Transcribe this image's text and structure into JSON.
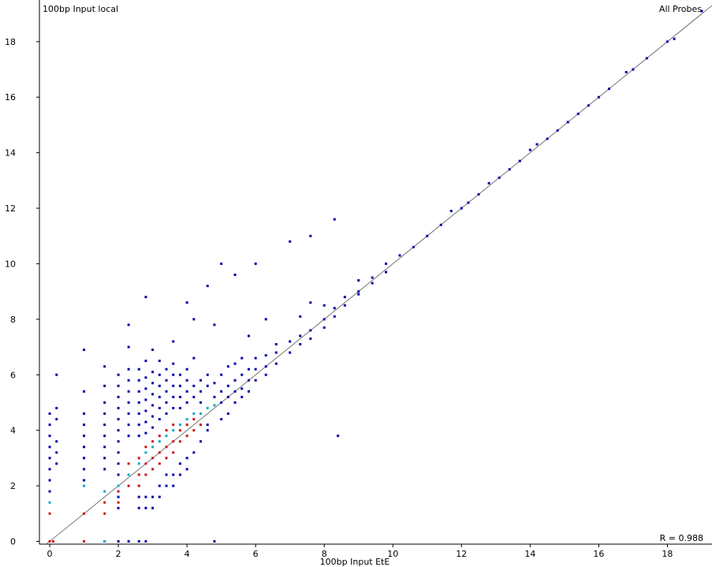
{
  "chart_data": {
    "type": "scatter",
    "title": "All Probes",
    "xlabel": "100bp Input EtE",
    "ylabel": "100bp Input local",
    "annotation": "R = 0.988",
    "xlim": [
      -0.3,
      19.3
    ],
    "ylim": [
      -0.1,
      19.5
    ],
    "xticks": [
      "0",
      "2",
      "4",
      "6",
      "8",
      "10",
      "12",
      "14",
      "16",
      "18"
    ],
    "yticks": [
      "0",
      "2",
      "4",
      "6",
      "8",
      "10",
      "12",
      "14",
      "16",
      "18"
    ],
    "reference_line": "y = x",
    "colors": {
      "axis": "#000000",
      "line": "#555555",
      "low_density": "#0000aa",
      "mid_density": "#00aacc",
      "high_density": "#cc1111"
    },
    "series": [
      {
        "density": "low",
        "points": [
          [
            0,
            4.6
          ],
          [
            0,
            4.2
          ],
          [
            0,
            3.8
          ],
          [
            0,
            3.4
          ],
          [
            0,
            3.0
          ],
          [
            0,
            2.6
          ],
          [
            0,
            2.2
          ],
          [
            0,
            1.8
          ],
          [
            0.2,
            6.0
          ],
          [
            0.2,
            4.8
          ],
          [
            0.2,
            4.4
          ],
          [
            0.2,
            3.6
          ],
          [
            0.2,
            3.2
          ],
          [
            0.2,
            2.8
          ],
          [
            1,
            6.9
          ],
          [
            1,
            5.4
          ],
          [
            1,
            4.6
          ],
          [
            1,
            4.2
          ],
          [
            1,
            3.8
          ],
          [
            1,
            3.4
          ],
          [
            1,
            3.0
          ],
          [
            1,
            2.6
          ],
          [
            1,
            2.2
          ],
          [
            1.6,
            6.3
          ],
          [
            1.6,
            5.6
          ],
          [
            1.6,
            5.0
          ],
          [
            1.6,
            4.6
          ],
          [
            1.6,
            4.2
          ],
          [
            1.6,
            3.8
          ],
          [
            1.6,
            3.4
          ],
          [
            1.6,
            3.0
          ],
          [
            1.6,
            2.6
          ],
          [
            1.6,
            0
          ],
          [
            2,
            6.0
          ],
          [
            2,
            5.6
          ],
          [
            2,
            5.2
          ],
          [
            2,
            4.8
          ],
          [
            2,
            4.4
          ],
          [
            2,
            4.0
          ],
          [
            2,
            3.6
          ],
          [
            2,
            3.2
          ],
          [
            2,
            2.8
          ],
          [
            2,
            2.4
          ],
          [
            2,
            1.6
          ],
          [
            2,
            1.2
          ],
          [
            2,
            0
          ],
          [
            2.3,
            7.8
          ],
          [
            2.3,
            7.0
          ],
          [
            2.3,
            6.2
          ],
          [
            2.3,
            5.8
          ],
          [
            2.3,
            5.4
          ],
          [
            2.3,
            5.0
          ],
          [
            2.3,
            4.6
          ],
          [
            2.3,
            4.2
          ],
          [
            2.3,
            3.8
          ],
          [
            2.3,
            0
          ],
          [
            2.6,
            6.2
          ],
          [
            2.6,
            5.8
          ],
          [
            2.6,
            5.4
          ],
          [
            2.6,
            5.0
          ],
          [
            2.6,
            4.6
          ],
          [
            2.6,
            4.2
          ],
          [
            2.6,
            3.8
          ],
          [
            2.6,
            1.6
          ],
          [
            2.6,
            1.2
          ],
          [
            2.6,
            0
          ],
          [
            2.8,
            8.8
          ],
          [
            2.8,
            6.5
          ],
          [
            2.8,
            5.9
          ],
          [
            2.8,
            5.5
          ],
          [
            2.8,
            5.1
          ],
          [
            2.8,
            4.7
          ],
          [
            2.8,
            4.3
          ],
          [
            2.8,
            3.9
          ],
          [
            2.8,
            1.6
          ],
          [
            2.8,
            1.2
          ],
          [
            2.8,
            0
          ],
          [
            3.0,
            6.9
          ],
          [
            3.0,
            6.1
          ],
          [
            3.0,
            5.7
          ],
          [
            3.0,
            5.3
          ],
          [
            3.0,
            4.9
          ],
          [
            3.0,
            4.5
          ],
          [
            3.0,
            4.1
          ],
          [
            3.0,
            1.6
          ],
          [
            3.0,
            1.2
          ],
          [
            3.2,
            6.5
          ],
          [
            3.2,
            6.0
          ],
          [
            3.2,
            5.6
          ],
          [
            3.2,
            5.2
          ],
          [
            3.2,
            4.8
          ],
          [
            3.2,
            4.4
          ],
          [
            3.2,
            2.0
          ],
          [
            3.2,
            1.6
          ],
          [
            3.4,
            6.2
          ],
          [
            3.4,
            5.8
          ],
          [
            3.4,
            5.4
          ],
          [
            3.4,
            5.0
          ],
          [
            3.4,
            4.6
          ],
          [
            3.4,
            2.4
          ],
          [
            3.4,
            2.0
          ],
          [
            3.6,
            7.2
          ],
          [
            3.6,
            6.4
          ],
          [
            3.6,
            6.0
          ],
          [
            3.6,
            5.6
          ],
          [
            3.6,
            5.2
          ],
          [
            3.6,
            4.8
          ],
          [
            3.6,
            2.4
          ],
          [
            3.6,
            2.0
          ],
          [
            3.8,
            6.0
          ],
          [
            3.8,
            5.6
          ],
          [
            3.8,
            5.2
          ],
          [
            3.8,
            4.8
          ],
          [
            3.8,
            2.8
          ],
          [
            3.8,
            2.4
          ],
          [
            4.0,
            8.6
          ],
          [
            4.0,
            6.2
          ],
          [
            4.0,
            5.8
          ],
          [
            4.0,
            5.4
          ],
          [
            4.0,
            5.0
          ],
          [
            4.0,
            3.0
          ],
          [
            4.0,
            2.6
          ],
          [
            4.2,
            8.0
          ],
          [
            4.2,
            6.6
          ],
          [
            4.2,
            5.6
          ],
          [
            4.2,
            5.2
          ],
          [
            4.2,
            3.2
          ],
          [
            4.4,
            5.8
          ],
          [
            4.4,
            5.4
          ],
          [
            4.4,
            5.0
          ],
          [
            4.4,
            3.6
          ],
          [
            4.6,
            9.2
          ],
          [
            4.6,
            6.0
          ],
          [
            4.6,
            5.6
          ],
          [
            4.6,
            4.2
          ],
          [
            4.6,
            4.0
          ],
          [
            4.8,
            7.8
          ],
          [
            4.8,
            5.7
          ],
          [
            4.8,
            5.2
          ],
          [
            4.8,
            0
          ],
          [
            5.0,
            10.0
          ],
          [
            5.0,
            6.0
          ],
          [
            5.0,
            5.4
          ],
          [
            5.0,
            5.0
          ],
          [
            5.0,
            4.4
          ],
          [
            5.2,
            6.3
          ],
          [
            5.2,
            5.6
          ],
          [
            5.2,
            5.2
          ],
          [
            5.2,
            4.6
          ],
          [
            5.4,
            9.6
          ],
          [
            5.4,
            6.4
          ],
          [
            5.4,
            5.8
          ],
          [
            5.4,
            5.4
          ],
          [
            5.4,
            5.0
          ],
          [
            5.6,
            6.6
          ],
          [
            5.6,
            6.0
          ],
          [
            5.6,
            5.5
          ],
          [
            5.6,
            5.2
          ],
          [
            5.8,
            7.4
          ],
          [
            5.8,
            6.2
          ],
          [
            5.8,
            5.8
          ],
          [
            5.8,
            5.4
          ],
          [
            6.0,
            10.0
          ],
          [
            6.0,
            6.6
          ],
          [
            6.0,
            6.2
          ],
          [
            6.0,
            5.8
          ],
          [
            6.3,
            8.0
          ],
          [
            6.3,
            6.7
          ],
          [
            6.3,
            6.3
          ],
          [
            6.3,
            6.0
          ],
          [
            6.6,
            7.1
          ],
          [
            6.6,
            6.8
          ],
          [
            6.6,
            6.4
          ],
          [
            7.0,
            10.8
          ],
          [
            7.0,
            7.2
          ],
          [
            7.0,
            6.8
          ],
          [
            7.3,
            8.1
          ],
          [
            7.3,
            7.4
          ],
          [
            7.3,
            7.1
          ],
          [
            7.6,
            11.0
          ],
          [
            7.6,
            8.6
          ],
          [
            7.6,
            7.6
          ],
          [
            7.6,
            7.3
          ],
          [
            8.0,
            8.5
          ],
          [
            8.0,
            8.0
          ],
          [
            8.0,
            7.7
          ],
          [
            8.3,
            11.6
          ],
          [
            8.3,
            8.4
          ],
          [
            8.3,
            8.1
          ],
          [
            8.4,
            3.8
          ],
          [
            8.6,
            8.8
          ],
          [
            8.6,
            8.5
          ],
          [
            9.0,
            9.4
          ],
          [
            9.0,
            9.0
          ],
          [
            9.0,
            8.9
          ],
          [
            9.4,
            9.5
          ],
          [
            9.4,
            9.3
          ],
          [
            9.8,
            10.0
          ],
          [
            9.8,
            9.7
          ],
          [
            10.2,
            10.3
          ],
          [
            10.6,
            10.6
          ],
          [
            11.0,
            11.0
          ],
          [
            11.4,
            11.4
          ],
          [
            11.7,
            11.9
          ],
          [
            12.0,
            12.0
          ],
          [
            12.2,
            12.2
          ],
          [
            12.5,
            12.5
          ],
          [
            12.8,
            12.9
          ],
          [
            13.1,
            13.1
          ],
          [
            13.4,
            13.4
          ],
          [
            13.7,
            13.7
          ],
          [
            14.0,
            14.1
          ],
          [
            14.2,
            14.3
          ],
          [
            14.5,
            14.5
          ],
          [
            14.8,
            14.8
          ],
          [
            15.1,
            15.1
          ],
          [
            15.4,
            15.4
          ],
          [
            15.7,
            15.7
          ],
          [
            16.0,
            16.0
          ],
          [
            16.3,
            16.3
          ],
          [
            16.8,
            16.9
          ],
          [
            17.0,
            17.0
          ],
          [
            17.4,
            17.4
          ],
          [
            18.0,
            18.0
          ],
          [
            18.2,
            18.1
          ],
          [
            19.0,
            19.1
          ]
        ]
      },
      {
        "density": "mid",
        "points": [
          [
            0,
            1.4
          ],
          [
            1,
            2.0
          ],
          [
            1.6,
            1.8
          ],
          [
            2,
            2.0
          ],
          [
            2.3,
            2.4
          ],
          [
            2.6,
            2.8
          ],
          [
            2.8,
            3.2
          ],
          [
            3.0,
            3.4
          ],
          [
            3.2,
            3.6
          ],
          [
            3.4,
            3.8
          ],
          [
            3.6,
            4.0
          ],
          [
            3.8,
            4.2
          ],
          [
            4.0,
            4.4
          ],
          [
            4.2,
            4.6
          ],
          [
            4.4,
            4.6
          ],
          [
            4.6,
            4.8
          ],
          [
            4.8,
            4.9
          ],
          [
            1.6,
            0
          ]
        ]
      },
      {
        "density": "high",
        "points": [
          [
            0,
            0
          ],
          [
            0.1,
            0
          ],
          [
            0,
            1.0
          ],
          [
            1,
            1.0
          ],
          [
            1,
            0
          ],
          [
            1.6,
            1.0
          ],
          [
            1.6,
            1.4
          ],
          [
            2,
            1.4
          ],
          [
            2,
            1.8
          ],
          [
            2.3,
            2.0
          ],
          [
            2.3,
            2.8
          ],
          [
            2.6,
            2.0
          ],
          [
            2.6,
            2.4
          ],
          [
            2.6,
            3.0
          ],
          [
            2.8,
            2.4
          ],
          [
            2.8,
            2.8
          ],
          [
            2.8,
            3.4
          ],
          [
            3.0,
            2.6
          ],
          [
            3.0,
            3.0
          ],
          [
            3.0,
            3.6
          ],
          [
            3.2,
            2.8
          ],
          [
            3.2,
            3.2
          ],
          [
            3.2,
            3.8
          ],
          [
            3.4,
            3.0
          ],
          [
            3.4,
            3.4
          ],
          [
            3.4,
            4.0
          ],
          [
            3.6,
            3.2
          ],
          [
            3.6,
            3.6
          ],
          [
            3.6,
            4.2
          ],
          [
            3.8,
            3.6
          ],
          [
            3.8,
            4.0
          ],
          [
            4.0,
            3.8
          ],
          [
            4.0,
            4.2
          ],
          [
            4.2,
            4.0
          ],
          [
            4.2,
            4.4
          ],
          [
            4.4,
            4.2
          ]
        ]
      }
    ]
  }
}
